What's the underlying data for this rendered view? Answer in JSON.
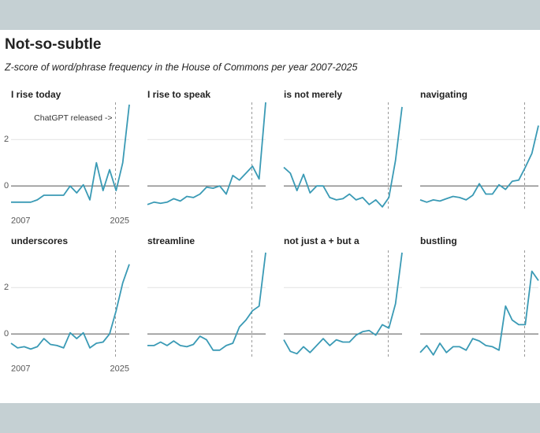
{
  "title": "Not-so-subtle",
  "subtitle": "Z-score of word/phrase frequency in the House of Commons per year 2007-2025",
  "chart_data": [
    {
      "type": "line",
      "title": "I rise today",
      "annotation": "ChatGPT released ->",
      "color": "#3a9ab5",
      "x": [
        2007,
        2008,
        2009,
        2010,
        2011,
        2012,
        2013,
        2014,
        2015,
        2016,
        2017,
        2018,
        2019,
        2020,
        2021,
        2022,
        2023,
        2024,
        2025
      ],
      "values": [
        -0.7,
        -0.7,
        -0.7,
        -0.7,
        -0.6,
        -0.4,
        -0.4,
        -0.4,
        -0.4,
        0,
        -0.3,
        0.05,
        -0.6,
        1.0,
        -0.2,
        0.7,
        -0.2,
        1.0,
        3.5
      ],
      "xlim": [
        2007,
        2025
      ],
      "xticks": [
        2007,
        2025
      ],
      "ylim": [
        -1,
        3.6
      ],
      "yticks": [
        0,
        2
      ],
      "vline": 2022.9
    },
    {
      "type": "line",
      "title": "I rise to speak",
      "color": "#3a9ab5",
      "x": [
        2007,
        2008,
        2009,
        2010,
        2011,
        2012,
        2013,
        2014,
        2015,
        2016,
        2017,
        2018,
        2019,
        2020,
        2021,
        2022,
        2023,
        2024,
        2025
      ],
      "values": [
        -0.8,
        -0.7,
        -0.75,
        -0.7,
        -0.55,
        -0.65,
        -0.45,
        -0.5,
        -0.35,
        -0.05,
        -0.1,
        0,
        -0.35,
        0.45,
        0.25,
        0.55,
        0.85,
        0.3,
        3.6
      ],
      "xlim": [
        2007,
        2025
      ],
      "ylim": [
        -1,
        3.6
      ],
      "yticks": [
        0,
        2
      ],
      "vline": 2022.9
    },
    {
      "type": "line",
      "title": "is not merely",
      "color": "#3a9ab5",
      "x": [
        2007,
        2008,
        2009,
        2010,
        2011,
        2012,
        2013,
        2014,
        2015,
        2016,
        2017,
        2018,
        2019,
        2020,
        2021,
        2022,
        2023,
        2024,
        2025
      ],
      "values": [
        0.8,
        0.55,
        -0.2,
        0.5,
        -0.3,
        0,
        0,
        -0.5,
        -0.6,
        -0.55,
        -0.35,
        -0.6,
        -0.5,
        -0.8,
        -0.6,
        -0.9,
        -0.5,
        1.1,
        3.4
      ],
      "xlim": [
        2007,
        2025
      ],
      "ylim": [
        -1,
        3.6
      ],
      "yticks": [
        0,
        2
      ],
      "vline": 2022.9
    },
    {
      "type": "line",
      "title": "navigating",
      "color": "#3a9ab5",
      "x": [
        2007,
        2008,
        2009,
        2010,
        2011,
        2012,
        2013,
        2014,
        2015,
        2016,
        2017,
        2018,
        2019,
        2020,
        2021,
        2022,
        2023,
        2024,
        2025
      ],
      "values": [
        -0.6,
        -0.7,
        -0.6,
        -0.65,
        -0.55,
        -0.45,
        -0.5,
        -0.6,
        -0.4,
        0.1,
        -0.35,
        -0.35,
        0.05,
        -0.15,
        0.2,
        0.25,
        0.8,
        1.4,
        2.6
      ],
      "xlim": [
        2007,
        2025
      ],
      "ylim": [
        -1,
        3.6
      ],
      "yticks": [
        0,
        2
      ],
      "vline": 2022.9
    },
    {
      "type": "line",
      "title": "underscores",
      "color": "#3a9ab5",
      "x": [
        2007,
        2008,
        2009,
        2010,
        2011,
        2012,
        2013,
        2014,
        2015,
        2016,
        2017,
        2018,
        2019,
        2020,
        2021,
        2022,
        2023,
        2024,
        2025
      ],
      "values": [
        -0.4,
        -0.6,
        -0.55,
        -0.65,
        -0.55,
        -0.2,
        -0.45,
        -0.5,
        -0.6,
        0.05,
        -0.2,
        0.05,
        -0.6,
        -0.4,
        -0.35,
        0,
        1.0,
        2.2,
        3.0
      ],
      "xlim": [
        2007,
        2025
      ],
      "xticks": [
        2007,
        2025
      ],
      "ylim": [
        -1,
        3.6
      ],
      "yticks": [
        0,
        2
      ],
      "vline": 2022.9
    },
    {
      "type": "line",
      "title": "streamline",
      "color": "#3a9ab5",
      "x": [
        2007,
        2008,
        2009,
        2010,
        2011,
        2012,
        2013,
        2014,
        2015,
        2016,
        2017,
        2018,
        2019,
        2020,
        2021,
        2022,
        2023,
        2024,
        2025
      ],
      "values": [
        -0.5,
        -0.5,
        -0.35,
        -0.5,
        -0.3,
        -0.5,
        -0.55,
        -0.45,
        -0.1,
        -0.25,
        -0.7,
        -0.7,
        -0.5,
        -0.4,
        0.3,
        0.6,
        1.0,
        1.2,
        3.5
      ],
      "xlim": [
        2007,
        2025
      ],
      "ylim": [
        -1,
        3.6
      ],
      "yticks": [
        0,
        2
      ],
      "vline": 2022.9
    },
    {
      "type": "line",
      "title": "not just a + but a",
      "color": "#3a9ab5",
      "x": [
        2007,
        2008,
        2009,
        2010,
        2011,
        2012,
        2013,
        2014,
        2015,
        2016,
        2017,
        2018,
        2019,
        2020,
        2021,
        2022,
        2023,
        2024,
        2025
      ],
      "values": [
        -0.25,
        -0.75,
        -0.85,
        -0.55,
        -0.8,
        -0.5,
        -0.2,
        -0.5,
        -0.25,
        -0.35,
        -0.35,
        -0.05,
        0.1,
        0.15,
        -0.05,
        0.4,
        0.25,
        1.3,
        3.5
      ],
      "xlim": [
        2007,
        2025
      ],
      "ylim": [
        -1,
        3.6
      ],
      "yticks": [
        0,
        2
      ],
      "vline": 2022.9
    },
    {
      "type": "line",
      "title": "bustling",
      "color": "#3a9ab5",
      "x": [
        2007,
        2008,
        2009,
        2010,
        2011,
        2012,
        2013,
        2014,
        2015,
        2016,
        2017,
        2018,
        2019,
        2020,
        2021,
        2022,
        2023,
        2024,
        2025
      ],
      "values": [
        -0.8,
        -0.5,
        -0.9,
        -0.4,
        -0.8,
        -0.55,
        -0.55,
        -0.7,
        -0.2,
        -0.3,
        -0.5,
        -0.55,
        -0.7,
        1.2,
        0.6,
        0.4,
        0.4,
        2.7,
        2.3
      ],
      "xlim": [
        2007,
        2025
      ],
      "ylim": [
        -1,
        3.6
      ],
      "yticks": [
        0,
        2
      ],
      "vline": 2022.9
    }
  ]
}
